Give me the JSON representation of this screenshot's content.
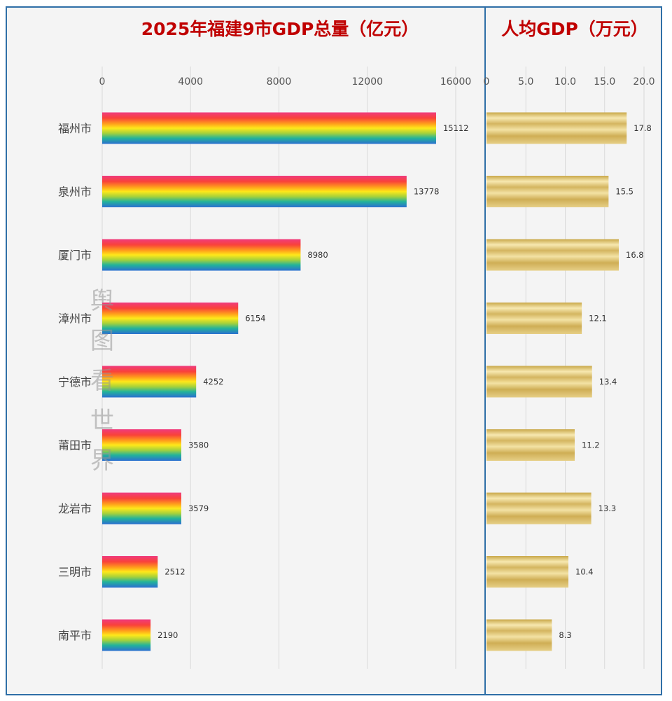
{
  "chart_data": [
    {
      "type": "bar",
      "orientation": "horizontal",
      "title": "2025年福建9市GDP总量（亿元）",
      "categories": [
        "福州市",
        "泉州市",
        "厦门市",
        "漳州市",
        "宁德市",
        "莆田市",
        "龙岩市",
        "三明市",
        "南平市"
      ],
      "values": [
        15112,
        13778,
        8980,
        6154,
        4252,
        3580,
        3579,
        2512,
        2190
      ],
      "xlim": [
        0,
        16000
      ],
      "xticks": [
        "0",
        "4000",
        "8000",
        "12000",
        "16000"
      ],
      "grid": true,
      "bar_style": "rainbow-gradient"
    },
    {
      "type": "bar",
      "orientation": "horizontal",
      "title": "人均GDP（万元）",
      "categories": [
        "福州市",
        "泉州市",
        "厦门市",
        "漳州市",
        "宁德市",
        "莆田市",
        "龙岩市",
        "三明市",
        "南平市"
      ],
      "values": [
        17.8,
        15.5,
        16.8,
        12.1,
        13.4,
        11.2,
        13.3,
        10.4,
        8.3
      ],
      "value_labels": [
        "17.8",
        "15.5",
        "16.8",
        "12.1",
        "13.4",
        "11.2",
        "13.3",
        "10.4",
        "8.3"
      ],
      "xlim": [
        0,
        20
      ],
      "xticks": [
        "0",
        "5.0",
        "10.0",
        "15.0",
        "20.0"
      ],
      "grid": true,
      "bar_style": "gold"
    }
  ],
  "watermark": [
    "舆",
    "图",
    "看",
    "世",
    "界"
  ],
  "colors": {
    "border": "#2f6fa7",
    "title": "#c00000",
    "background": "#f4f4f4",
    "grid": "#d9d9d9",
    "gold_light": "#f7e8b0",
    "gold_dark": "#c9a84a"
  }
}
